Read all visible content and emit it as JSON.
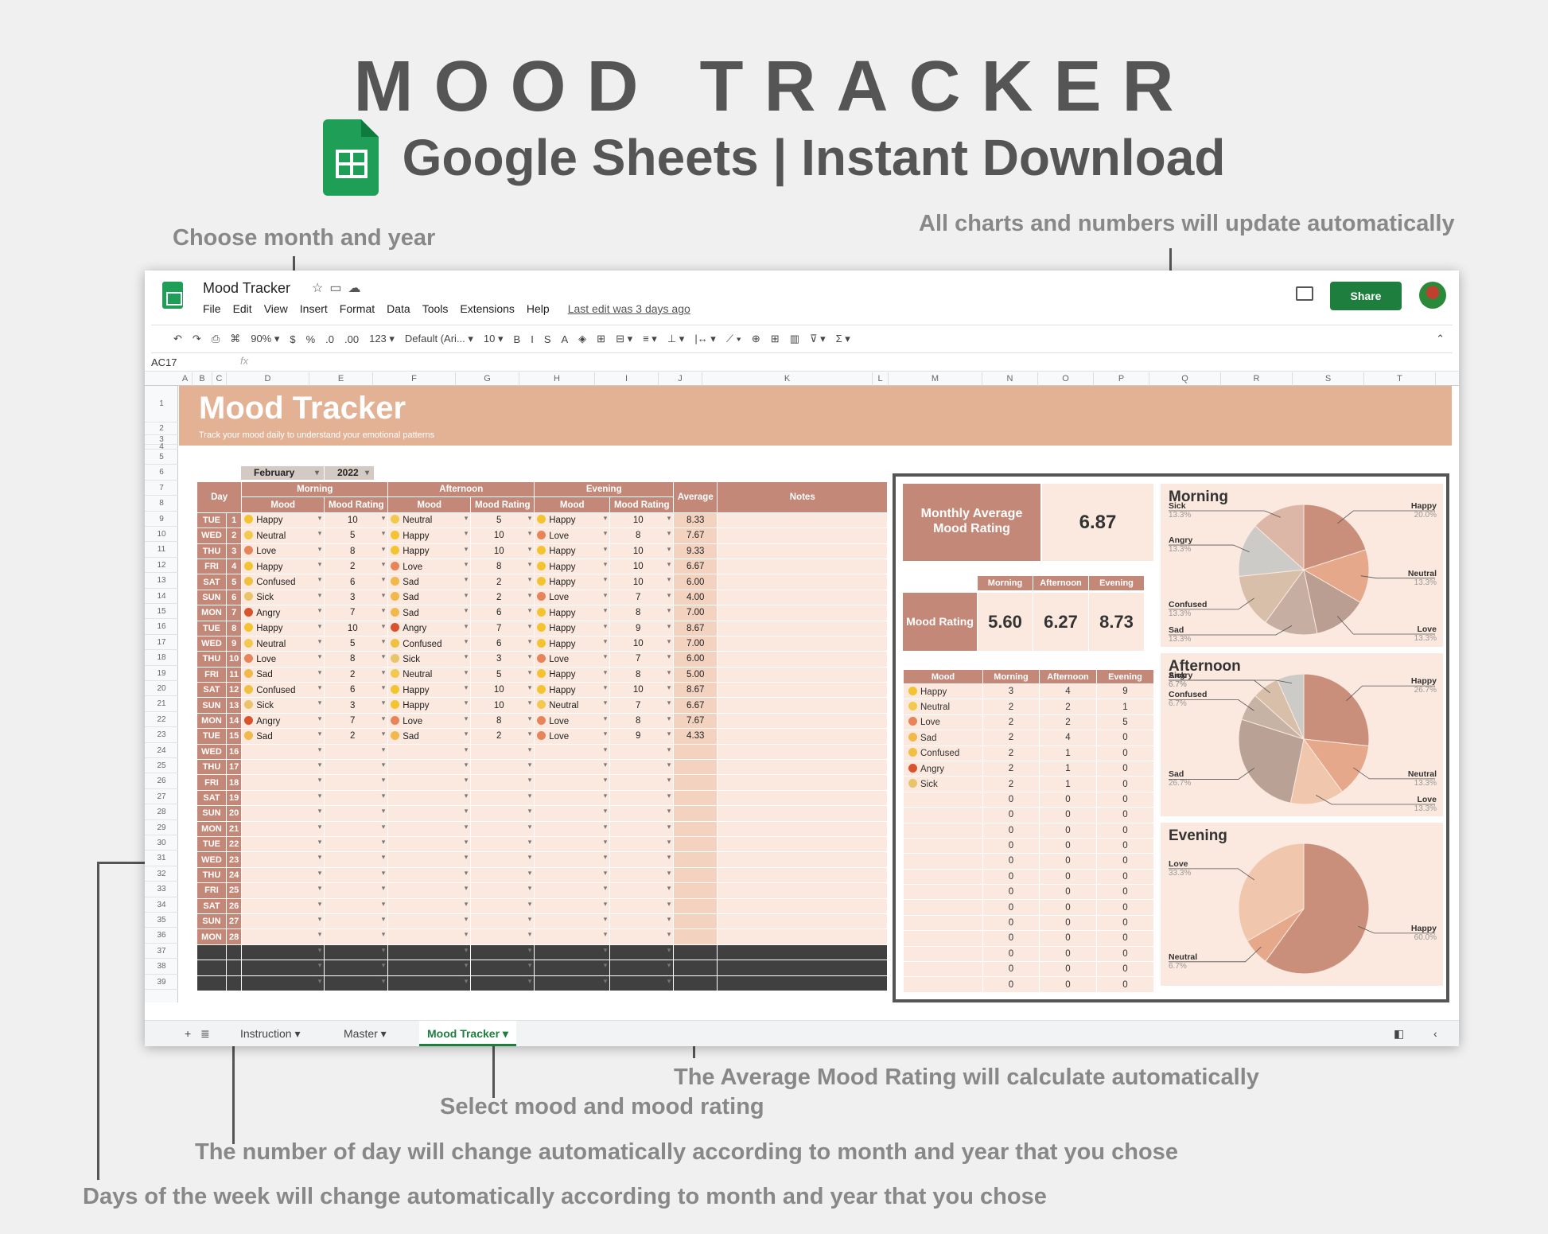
{
  "hero": {
    "title": "MOOD TRACKER",
    "subtitle": "Google Sheets | Instant Download"
  },
  "annotations": {
    "choose": "Choose month and year",
    "charts": "All charts and numbers will update automatically",
    "average": "The Average Mood Rating will calculate automatically",
    "select": "Select mood and mood rating",
    "daynum": "The number of day will change automatically according to month and year that you chose",
    "weekday": "Days of the week will change automatically according to month and year that you chose"
  },
  "app": {
    "doc_title": "Mood Tracker",
    "menu": [
      "File",
      "Edit",
      "View",
      "Insert",
      "Format",
      "Data",
      "Tools",
      "Extensions",
      "Help"
    ],
    "last_edit": "Last edit was 3 days ago",
    "share": "Share",
    "namebox": "AC17",
    "toolbar": [
      "↶",
      "↷",
      "⎙",
      "⌘",
      "90%  ▾",
      "$",
      "%",
      ".0",
      ".00",
      "123 ▾",
      "Default (Ari... ▾",
      "10  ▾",
      "B",
      "I",
      "S",
      "A",
      "◈",
      "⊞",
      "⊟ ▾",
      "≡ ▾",
      "⊥ ▾",
      "|↔ ▾",
      "⟋ ▾",
      "⊕",
      "⊞",
      "▥",
      "⊽ ▾",
      "Σ ▾"
    ],
    "columns": [
      "A",
      "B",
      "C",
      "D",
      "E",
      "F",
      "G",
      "H",
      "I",
      "J",
      "K",
      "L",
      "M",
      "N",
      "O",
      "P",
      "Q",
      "R",
      "S",
      "T"
    ],
    "tabs": [
      "Instruction ▾",
      "Master ▾",
      "Mood Tracker ▾"
    ]
  },
  "sheet": {
    "title": "Mood Tracker",
    "subtitle": "Track your mood daily to understand your emotional patterns",
    "month": "February",
    "year": "2022",
    "headers": {
      "day": "Day",
      "morning": "Morning",
      "afternoon": "Afternoon",
      "evening": "Evening",
      "average": "Average",
      "notes": "Notes",
      "mood": "Mood",
      "rating": "Mood Rating"
    },
    "rows": [
      [
        "TUE",
        "1",
        "Happy",
        "10",
        "Neutral",
        "5",
        "Happy",
        "10",
        "8.33"
      ],
      [
        "WED",
        "2",
        "Neutral",
        "5",
        "Happy",
        "10",
        "Love",
        "8",
        "7.67"
      ],
      [
        "THU",
        "3",
        "Love",
        "8",
        "Happy",
        "10",
        "Happy",
        "10",
        "9.33"
      ],
      [
        "FRI",
        "4",
        "Happy",
        "2",
        "Love",
        "8",
        "Happy",
        "10",
        "6.67"
      ],
      [
        "SAT",
        "5",
        "Confused",
        "6",
        "Sad",
        "2",
        "Happy",
        "10",
        "6.00"
      ],
      [
        "SUN",
        "6",
        "Sick",
        "3",
        "Sad",
        "2",
        "Love",
        "7",
        "4.00"
      ],
      [
        "MON",
        "7",
        "Angry",
        "7",
        "Sad",
        "6",
        "Happy",
        "8",
        "7.00"
      ],
      [
        "TUE",
        "8",
        "Happy",
        "10",
        "Angry",
        "7",
        "Happy",
        "9",
        "8.67"
      ],
      [
        "WED",
        "9",
        "Neutral",
        "5",
        "Confused",
        "6",
        "Happy",
        "10",
        "7.00"
      ],
      [
        "THU",
        "10",
        "Love",
        "8",
        "Sick",
        "3",
        "Love",
        "7",
        "6.00"
      ],
      [
        "FRI",
        "11",
        "Sad",
        "2",
        "Neutral",
        "5",
        "Happy",
        "8",
        "5.00"
      ],
      [
        "SAT",
        "12",
        "Confused",
        "6",
        "Happy",
        "10",
        "Happy",
        "10",
        "8.67"
      ],
      [
        "SUN",
        "13",
        "Sick",
        "3",
        "Happy",
        "10",
        "Neutral",
        "7",
        "6.67"
      ],
      [
        "MON",
        "14",
        "Angry",
        "7",
        "Love",
        "8",
        "Love",
        "8",
        "7.67"
      ],
      [
        "TUE",
        "15",
        "Sad",
        "2",
        "Sad",
        "2",
        "Love",
        "9",
        "4.33"
      ],
      [
        "WED",
        "16",
        "",
        "",
        "",
        "",
        "",
        "",
        ""
      ],
      [
        "THU",
        "17",
        "",
        "",
        "",
        "",
        "",
        "",
        ""
      ],
      [
        "FRI",
        "18",
        "",
        "",
        "",
        "",
        "",
        "",
        ""
      ],
      [
        "SAT",
        "19",
        "",
        "",
        "",
        "",
        "",
        "",
        ""
      ],
      [
        "SUN",
        "20",
        "",
        "",
        "",
        "",
        "",
        "",
        ""
      ],
      [
        "MON",
        "21",
        "",
        "",
        "",
        "",
        "",
        "",
        ""
      ],
      [
        "TUE",
        "22",
        "",
        "",
        "",
        "",
        "",
        "",
        ""
      ],
      [
        "WED",
        "23",
        "",
        "",
        "",
        "",
        "",
        "",
        ""
      ],
      [
        "THU",
        "24",
        "",
        "",
        "",
        "",
        "",
        "",
        ""
      ],
      [
        "FRI",
        "25",
        "",
        "",
        "",
        "",
        "",
        "",
        ""
      ],
      [
        "SAT",
        "26",
        "",
        "",
        "",
        "",
        "",
        "",
        ""
      ],
      [
        "SUN",
        "27",
        "",
        "",
        "",
        "",
        "",
        "",
        ""
      ],
      [
        "MON",
        "28",
        "",
        "",
        "",
        "",
        "",
        "",
        ""
      ]
    ],
    "dark_rows": 3,
    "mood_colors": {
      "Happy": "#f4c430",
      "Neutral": "#f2c94c",
      "Love": "#e8845a",
      "Confused": "#f0c040",
      "Sick": "#e9c46a",
      "Angry": "#d9532c",
      "Sad": "#f2b84b"
    }
  },
  "dashboard": {
    "monthly_label": "Monthly Average Mood Rating",
    "monthly_value": "6.87",
    "rating_label": "Mood Rating",
    "periods": [
      "Morning",
      "Afternoon",
      "Evening"
    ],
    "period_values": [
      "5.60",
      "6.27",
      "8.73"
    ],
    "count_header": "Mood",
    "counts": [
      [
        "Happy",
        "3",
        "4",
        "9"
      ],
      [
        "Neutral",
        "2",
        "2",
        "1"
      ],
      [
        "Love",
        "2",
        "2",
        "5"
      ],
      [
        "Sad",
        "2",
        "4",
        "0"
      ],
      [
        "Confused",
        "2",
        "1",
        "0"
      ],
      [
        "Angry",
        "2",
        "1",
        "0"
      ],
      [
        "Sick",
        "2",
        "1",
        "0"
      ]
    ],
    "zero_rows": 13
  },
  "chart_data": [
    {
      "type": "pie",
      "title": "Morning",
      "labels": [
        "Happy",
        "Neutral",
        "Love",
        "Sad",
        "Confused",
        "Angry",
        "Sick"
      ],
      "values": [
        20.0,
        13.3,
        13.3,
        13.3,
        13.3,
        13.3,
        13.3
      ],
      "pct_labels": [
        "20.0%",
        "13.3%",
        "13.3%",
        "13.3%",
        "13.3%",
        "13.3%",
        "13.3%"
      ],
      "colors": [
        "#c98f7b",
        "#e6a88a",
        "#b99e91",
        "#c7aea3",
        "#d8bfa9",
        "#cdcbc8",
        "#dcb6a6"
      ]
    },
    {
      "type": "pie",
      "title": "Afternoon",
      "labels": [
        "Happy",
        "Neutral",
        "Love",
        "Sad",
        "Confused",
        "Angry",
        "Sick"
      ],
      "values": [
        26.7,
        13.3,
        13.3,
        26.7,
        6.7,
        6.7,
        6.7
      ],
      "pct_labels": [
        "26.7%",
        "13.3%",
        "13.3%",
        "26.7%",
        "6.7%",
        "6.7%",
        "6.7%"
      ],
      "colors": [
        "#c98f7b",
        "#e6a88a",
        "#f0c6ad",
        "#b9a295",
        "#c7b3a6",
        "#d8bfa9",
        "#cdcbc8"
      ]
    },
    {
      "type": "pie",
      "title": "Evening",
      "labels": [
        "Happy",
        "Neutral",
        "Love"
      ],
      "values": [
        60.0,
        6.7,
        33.3
      ],
      "pct_labels": [
        "60.0%",
        "6.7%",
        "33.3%"
      ],
      "colors": [
        "#c98f7b",
        "#e6a88a",
        "#f0c6ad"
      ]
    }
  ]
}
